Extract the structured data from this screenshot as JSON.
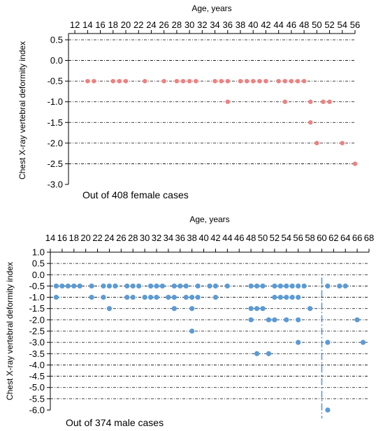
{
  "chart_data": [
    {
      "type": "scatter",
      "panel": "female",
      "xlabel": "Age, years",
      "ylabel": "Chest X-ray vertebral deformity index",
      "annotation": "Out of 408 female cases",
      "x_ticks": [
        12,
        14,
        16,
        18,
        20,
        22,
        24,
        26,
        28,
        30,
        32,
        34,
        36,
        38,
        40,
        42,
        44,
        46,
        48,
        50,
        52,
        54,
        56
      ],
      "xlim": [
        11,
        56
      ],
      "y_ticks": [
        0.5,
        0.0,
        -0.5,
        -1.0,
        -1.5,
        -2.0,
        -2.5,
        -3.0
      ],
      "ylim": [
        -3.0,
        0.5
      ],
      "marker_color": "#f08080",
      "gridline_color": "#000000",
      "points": [
        [
          14,
          -0.5
        ],
        [
          15,
          -0.5
        ],
        [
          18,
          -0.5
        ],
        [
          19,
          -0.5
        ],
        [
          20,
          -0.5
        ],
        [
          23,
          -0.5
        ],
        [
          26,
          -0.5
        ],
        [
          28,
          -0.5
        ],
        [
          29,
          -0.5
        ],
        [
          30,
          -0.5
        ],
        [
          31,
          -0.5
        ],
        [
          34,
          -0.5
        ],
        [
          35,
          -0.5
        ],
        [
          36,
          -0.5
        ],
        [
          38,
          -0.5
        ],
        [
          39,
          -0.5
        ],
        [
          40,
          -0.5
        ],
        [
          41,
          -0.5
        ],
        [
          42,
          -0.5
        ],
        [
          44,
          -0.5
        ],
        [
          45,
          -0.5
        ],
        [
          46,
          -0.5
        ],
        [
          47,
          -0.5
        ],
        [
          48,
          -0.5
        ],
        [
          36,
          -1.0
        ],
        [
          45,
          -1.0
        ],
        [
          49,
          -1.0
        ],
        [
          51,
          -1.0
        ],
        [
          52,
          -1.0
        ],
        [
          49,
          -1.5
        ],
        [
          50,
          -2.0
        ],
        [
          54,
          -2.0
        ],
        [
          56,
          -2.5
        ]
      ]
    },
    {
      "type": "scatter",
      "panel": "male",
      "xlabel": "Age, years",
      "ylabel": "Chest X-ray vertebral deformity index",
      "annotation": "Out of 374 male cases",
      "x_ticks": [
        14,
        16,
        18,
        20,
        22,
        24,
        26,
        28,
        30,
        32,
        34,
        36,
        38,
        40,
        42,
        44,
        46,
        48,
        50,
        52,
        54,
        56,
        58,
        60,
        62,
        64,
        66,
        68
      ],
      "x_tick_labels": [
        "14",
        "16",
        "18",
        "20",
        "22",
        "24",
        "26",
        "28",
        "30",
        "32",
        "34",
        "36",
        "38",
        "40",
        "42",
        "44",
        "46",
        "48",
        "50",
        "52",
        "54",
        "56",
        "58",
        "60",
        "62",
        "64",
        "66",
        "68"
      ],
      "xlim": [
        14,
        68
      ],
      "y_ticks": [
        1.0,
        0.5,
        0.0,
        -0.5,
        -1.0,
        -1.5,
        -2.0,
        -2.5,
        -3.0,
        -3.5,
        -4.0,
        -4.5,
        -5.0,
        -5.5,
        -6.0
      ],
      "ylim": [
        -6.0,
        1.0
      ],
      "marker_color": "#5b9bd5",
      "gridline_color": "#000000",
      "highlight_x": 60,
      "points": [
        [
          15,
          -0.5
        ],
        [
          16,
          -0.5
        ],
        [
          17,
          -0.5
        ],
        [
          18,
          -0.5
        ],
        [
          19,
          -0.5
        ],
        [
          21,
          -0.5
        ],
        [
          23,
          -0.5
        ],
        [
          24,
          -0.5
        ],
        [
          25,
          -0.5
        ],
        [
          27,
          -0.5
        ],
        [
          28,
          -0.5
        ],
        [
          29,
          -0.5
        ],
        [
          31,
          -0.5
        ],
        [
          32,
          -0.5
        ],
        [
          33,
          -0.5
        ],
        [
          35,
          -0.5
        ],
        [
          36,
          -0.5
        ],
        [
          37,
          -0.5
        ],
        [
          39,
          -0.5
        ],
        [
          41,
          -0.5
        ],
        [
          42,
          -0.5
        ],
        [
          44,
          -0.5
        ],
        [
          48,
          -0.5
        ],
        [
          49,
          -0.5
        ],
        [
          50,
          -0.5
        ],
        [
          52,
          -0.5
        ],
        [
          53,
          -0.5
        ],
        [
          54,
          -0.5
        ],
        [
          55,
          -0.5
        ],
        [
          56,
          -0.5
        ],
        [
          57,
          -0.5
        ],
        [
          61,
          -0.5
        ],
        [
          63,
          -0.5
        ],
        [
          64,
          -0.5
        ],
        [
          15,
          -1.0
        ],
        [
          21,
          -1.0
        ],
        [
          23,
          -1.0
        ],
        [
          27,
          -1.0
        ],
        [
          28,
          -1.0
        ],
        [
          30,
          -1.0
        ],
        [
          31,
          -1.0
        ],
        [
          32,
          -1.0
        ],
        [
          34,
          -1.0
        ],
        [
          35,
          -1.0
        ],
        [
          37,
          -1.0
        ],
        [
          38,
          -1.0
        ],
        [
          39,
          -1.0
        ],
        [
          42,
          -1.0
        ],
        [
          52,
          -1.0
        ],
        [
          53,
          -1.0
        ],
        [
          54,
          -1.0
        ],
        [
          55,
          -1.0
        ],
        [
          56,
          -1.0
        ],
        [
          24,
          -1.5
        ],
        [
          35,
          -1.5
        ],
        [
          38,
          -1.5
        ],
        [
          48,
          -1.5
        ],
        [
          49,
          -1.5
        ],
        [
          50,
          -1.5
        ],
        [
          58,
          -1.5
        ],
        [
          48,
          -2.0
        ],
        [
          51,
          -2.0
        ],
        [
          52,
          -2.0
        ],
        [
          54,
          -2.0
        ],
        [
          56,
          -2.0
        ],
        [
          66,
          -2.0
        ],
        [
          38,
          -2.5
        ],
        [
          56,
          -3.0
        ],
        [
          61,
          -3.0
        ],
        [
          67,
          -3.0
        ],
        [
          49,
          -3.5
        ],
        [
          51,
          -3.5
        ],
        [
          61,
          -6.0
        ]
      ]
    }
  ]
}
